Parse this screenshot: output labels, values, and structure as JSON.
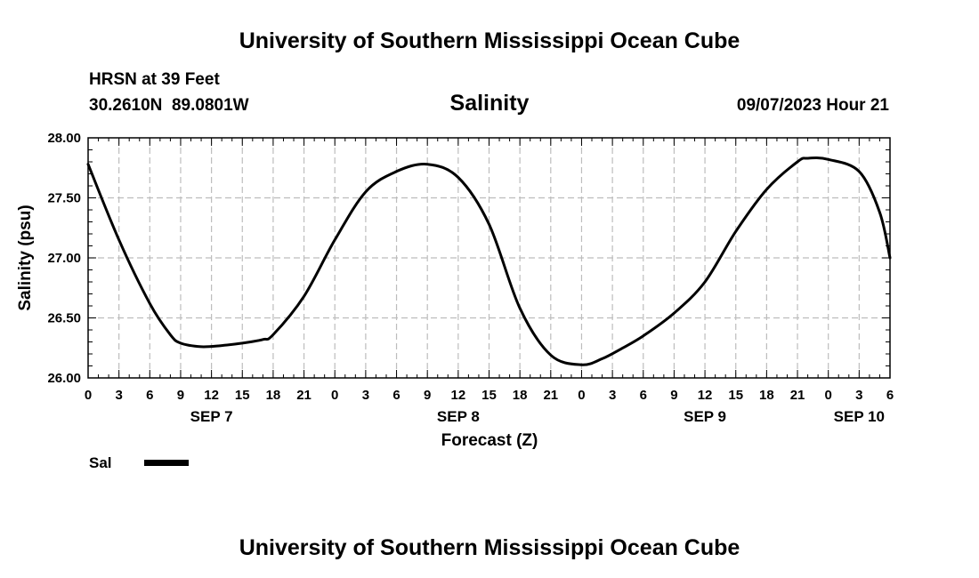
{
  "page": {
    "title": "University of Southern Mississippi Ocean Cube",
    "footer_title": "University of Southern Mississippi Ocean Cube",
    "station": "HRSN at 39 Feet",
    "coords": "30.2610N  89.0801W",
    "datetime": "09/07/2023 Hour 21"
  },
  "chart_data": {
    "type": "line",
    "title": "Salinity",
    "xlabel": "Forecast (Z)",
    "ylabel": "Salinity (psu)",
    "ylim": [
      26.0,
      28.0
    ],
    "y_ticks": [
      "26.00",
      "26.50",
      "27.00",
      "27.50",
      "28.00"
    ],
    "x_range_hours": [
      0,
      78
    ],
    "x_tick_labels": [
      "0",
      "3",
      "6",
      "9",
      "12",
      "15",
      "18",
      "21",
      "0",
      "3",
      "6",
      "9",
      "12",
      "15",
      "18",
      "21",
      "0",
      "3",
      "6",
      "9",
      "12",
      "15",
      "18",
      "21",
      "0",
      "3",
      "6"
    ],
    "date_labels": [
      {
        "label": "SEP 7",
        "hour": 12
      },
      {
        "label": "SEP 8",
        "hour": 36
      },
      {
        "label": "SEP 9",
        "hour": 60
      },
      {
        "label": "SEP 10",
        "hour": 75
      }
    ],
    "grid": true,
    "legend": {
      "position": "bottom-left",
      "entries": [
        {
          "name": "Sal",
          "color": "#000000"
        }
      ]
    },
    "series": [
      {
        "name": "Sal",
        "color": "#000000",
        "hours": [
          0,
          3,
          6,
          8,
          9,
          11,
          13,
          15,
          17,
          18,
          21,
          24,
          27,
          30,
          33,
          36,
          39,
          42,
          45,
          48,
          50,
          52,
          54,
          57,
          60,
          63,
          66,
          69,
          70,
          72,
          75,
          77,
          78
        ],
        "values": [
          27.78,
          27.15,
          26.62,
          26.36,
          26.29,
          26.26,
          26.27,
          26.29,
          26.32,
          26.36,
          26.68,
          27.15,
          27.55,
          27.72,
          27.78,
          27.67,
          27.28,
          26.58,
          26.19,
          26.11,
          26.16,
          26.25,
          26.35,
          26.54,
          26.8,
          27.22,
          27.57,
          27.8,
          27.83,
          27.82,
          27.72,
          27.38,
          27.0
        ]
      }
    ]
  }
}
